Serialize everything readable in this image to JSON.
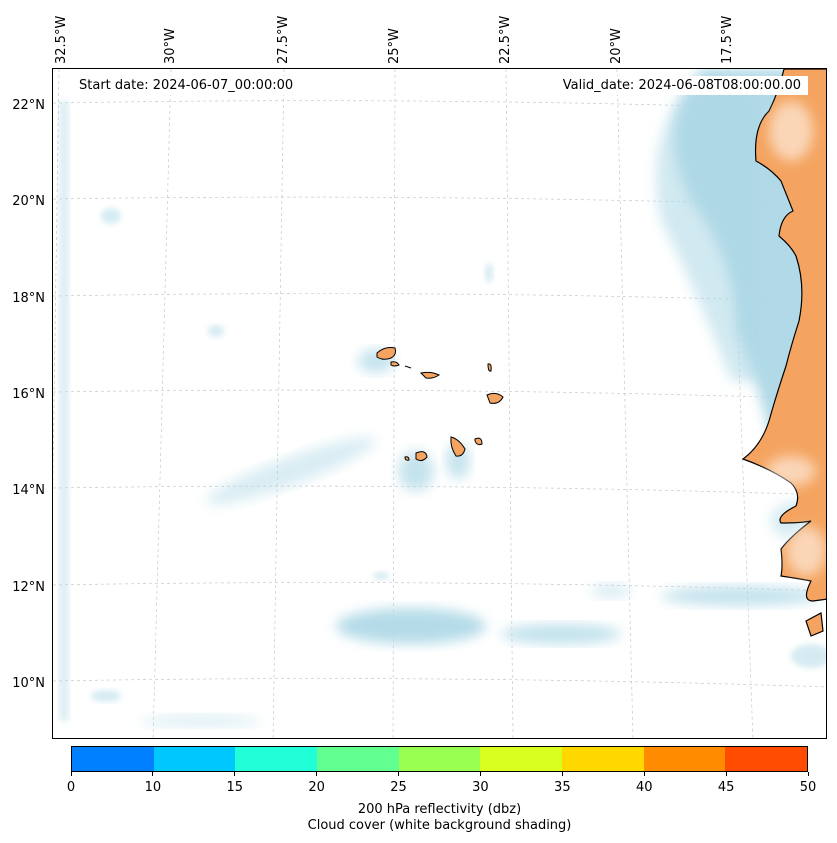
{
  "map": {
    "start_date": "Start date: 2024-06-07_00:00:00",
    "valid_date": "Valid_date: 2024-06-08T08:00:00.00",
    "longitude_labels": [
      "32.5°W",
      "30°W",
      "27.5°W",
      "25°W",
      "22.5°W",
      "20°W",
      "17.5°W"
    ],
    "latitude_labels": [
      "22°N",
      "20°N",
      "18°N",
      "16°N",
      "14°N",
      "12°N",
      "10°N"
    ],
    "land_color": "#f4a460",
    "cloud_color": "#add8e6"
  },
  "colorbar": {
    "ticks": [
      "0",
      "10",
      "15",
      "20",
      "25",
      "30",
      "35",
      "40",
      "45",
      "50"
    ],
    "colors": [
      "#0080ff",
      "#00c8ff",
      "#20ffd8",
      "#60ff90",
      "#98ff50",
      "#d8ff20",
      "#ffd800",
      "#ff8c00",
      "#ff4c00"
    ],
    "label_line1": "200 hPa reflectivity (dbz)",
    "label_line2": "Cloud cover (white background shading)"
  }
}
